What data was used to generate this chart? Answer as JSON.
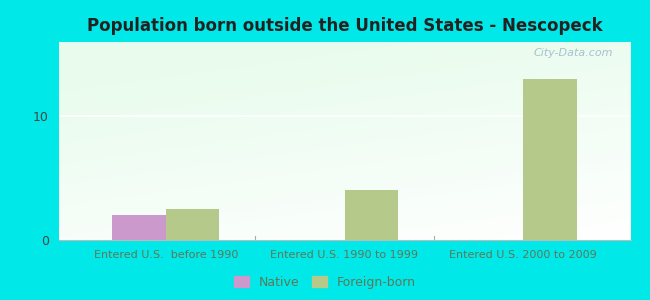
{
  "title": "Population born outside the United States - Nescopeck",
  "background_color": "#00e8e8",
  "categories": [
    "Entered U.S.  before 1990",
    "Entered U.S. 1990 to 1999",
    "Entered U.S. 2000 to 2009"
  ],
  "native_values": [
    2,
    0,
    0
  ],
  "foreign_values": [
    2.5,
    4,
    13
  ],
  "native_color": "#cc99cc",
  "foreign_color": "#b5c98a",
  "ylim": [
    0,
    16
  ],
  "yticks": [
    0,
    10
  ],
  "bar_width": 0.3,
  "watermark": "City-Data.com",
  "legend_native": "Native",
  "legend_foreign": "Foreign-born",
  "title_fontsize": 12,
  "xtick_fontsize": 8,
  "ytick_fontsize": 9
}
